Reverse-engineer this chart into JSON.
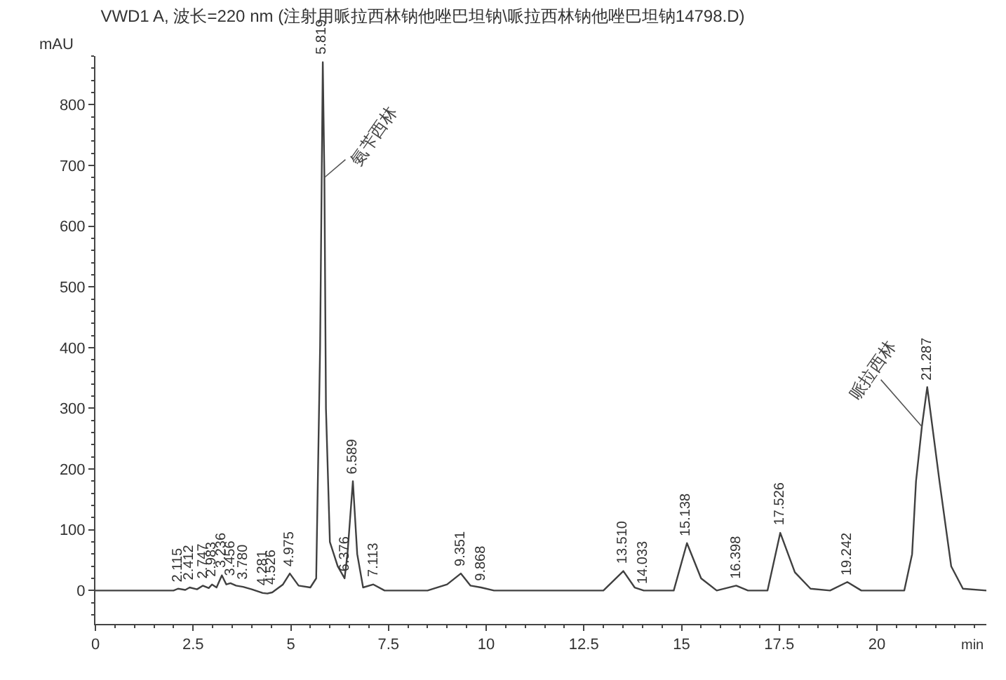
{
  "chart_data": {
    "type": "line",
    "title": "VWD1 A, 波长=220 nm (注射用哌拉西林钠他唑巴坦钠\\哌拉西林钠他唑巴坦钠14798.D)",
    "ylabel": "mAU",
    "xlabel": "min",
    "xlim": [
      0,
      22.8
    ],
    "ylim": [
      -55,
      880
    ],
    "xticks": [
      0,
      2.5,
      5,
      7.5,
      10,
      12.5,
      15,
      17.5,
      20
    ],
    "yticks": [
      0,
      100,
      200,
      300,
      400,
      500,
      600,
      700,
      800
    ],
    "grid": false,
    "marker": "none",
    "line_style": "solid",
    "annotations": [
      {
        "text": "氨苄西林",
        "x": 5.86,
        "y": 680
      },
      {
        "text": "哌拉西林",
        "x": 21.15,
        "y": 270
      },
      {
        "text": "2.115",
        "x": 2.115,
        "y": 3
      },
      {
        "text": "2.412",
        "x": 2.412,
        "y": 5
      },
      {
        "text": "2.747",
        "x": 2.747,
        "y": 8
      },
      {
        "text": "2.983",
        "x": 2.983,
        "y": 10
      },
      {
        "text": "3.236",
        "x": 3.236,
        "y": 25
      },
      {
        "text": "3.456",
        "x": 3.456,
        "y": 12
      },
      {
        "text": "3.780",
        "x": 3.78,
        "y": 6
      },
      {
        "text": "4.281",
        "x": 4.281,
        "y": -4
      },
      {
        "text": "4.526",
        "x": 4.526,
        "y": -3
      },
      {
        "text": "4.975",
        "x": 4.975,
        "y": 28
      },
      {
        "text": "5.819",
        "x": 5.819,
        "y": 870
      },
      {
        "text": "6.376",
        "x": 6.376,
        "y": 20
      },
      {
        "text": "6.589",
        "x": 6.589,
        "y": 180
      },
      {
        "text": "7.113",
        "x": 7.113,
        "y": 10
      },
      {
        "text": "9.351",
        "x": 9.351,
        "y": 28
      },
      {
        "text": "9.868",
        "x": 9.868,
        "y": 5
      },
      {
        "text": "13.510",
        "x": 13.51,
        "y": 32
      },
      {
        "text": "14.033",
        "x": 14.033,
        "y": 0
      },
      {
        "text": "15.138",
        "x": 15.138,
        "y": 78
      },
      {
        "text": "16.398",
        "x": 16.398,
        "y": 8
      },
      {
        "text": "17.526",
        "x": 17.526,
        "y": 95
      },
      {
        "text": "19.242",
        "x": 19.242,
        "y": 14
      },
      {
        "text": "21.287",
        "x": 21.287,
        "y": 335
      }
    ],
    "series": [
      {
        "color": "#404040",
        "x": [
          0,
          2.0,
          2.115,
          2.3,
          2.412,
          2.6,
          2.747,
          2.9,
          2.983,
          3.1,
          3.236,
          3.35,
          3.456,
          3.6,
          3.78,
          4.0,
          4.281,
          4.4,
          4.526,
          4.8,
          4.975,
          5.2,
          5.5,
          5.65,
          5.75,
          5.819,
          5.86,
          5.9,
          6.0,
          6.2,
          6.376,
          6.45,
          6.589,
          6.7,
          6.85,
          7.113,
          7.4,
          8.5,
          9.0,
          9.351,
          9.6,
          9.868,
          10.2,
          13.0,
          13.51,
          13.8,
          14.033,
          14.8,
          15.138,
          15.5,
          15.9,
          16.398,
          16.7,
          17.2,
          17.526,
          17.9,
          18.3,
          18.8,
          19.242,
          19.6,
          20.7,
          20.9,
          21.0,
          21.15,
          21.287,
          21.6,
          21.9,
          22.2,
          22.8
        ],
        "values": [
          0,
          0,
          3,
          1,
          5,
          2,
          8,
          4,
          10,
          5,
          25,
          10,
          12,
          8,
          6,
          2,
          -4,
          -5,
          -3,
          10,
          28,
          8,
          5,
          20,
          400,
          870,
          680,
          300,
          80,
          40,
          20,
          60,
          180,
          60,
          5,
          10,
          0,
          0,
          10,
          28,
          8,
          5,
          0,
          0,
          32,
          5,
          0,
          0,
          78,
          20,
          0,
          8,
          0,
          0,
          95,
          30,
          3,
          0,
          14,
          0,
          0,
          60,
          180,
          270,
          335,
          180,
          40,
          3,
          0
        ]
      }
    ]
  }
}
